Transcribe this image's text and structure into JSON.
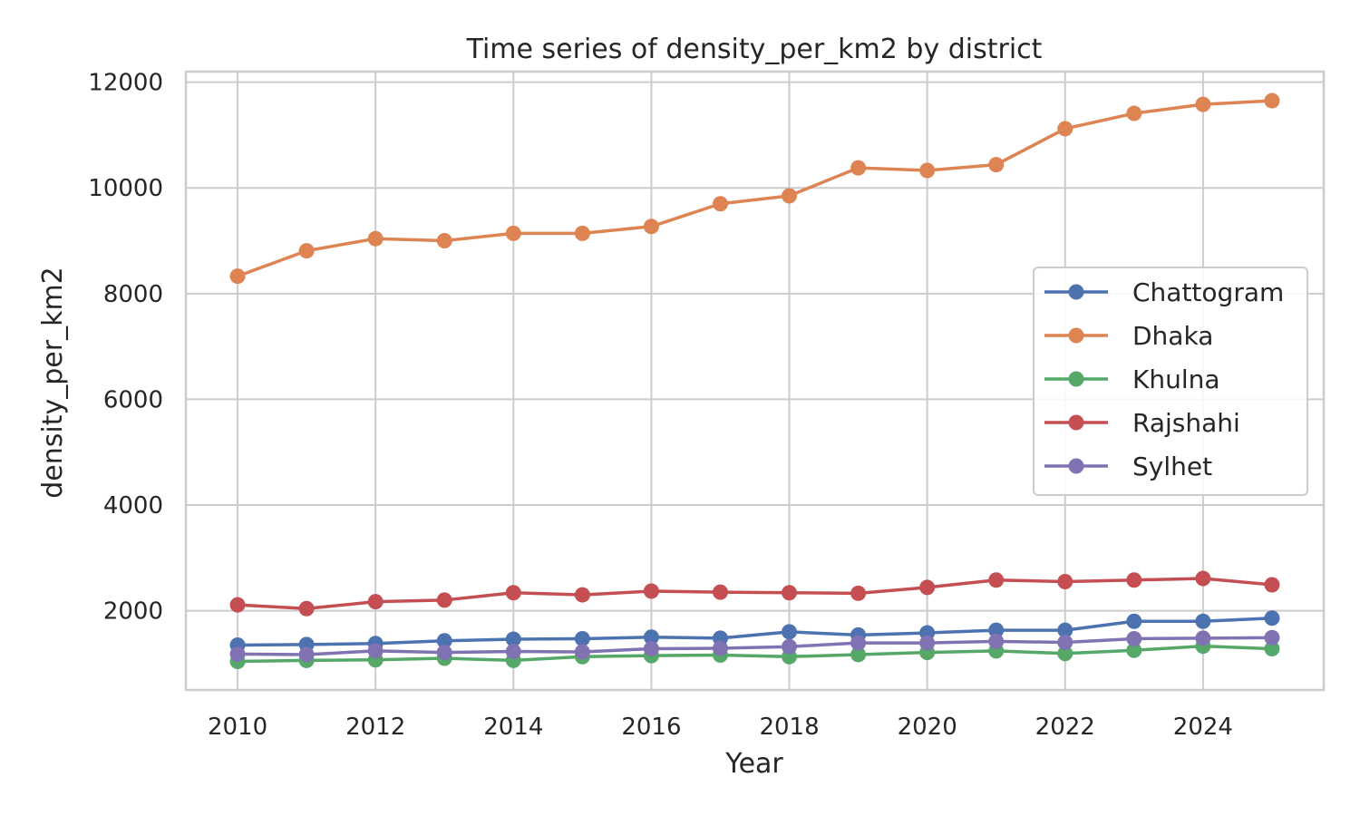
{
  "chart_data": {
    "type": "line",
    "title": "Time series of density_per_km2 by district",
    "xlabel": "Year",
    "ylabel": "density_per_km2",
    "x": [
      2010,
      2011,
      2012,
      2013,
      2014,
      2015,
      2016,
      2017,
      2018,
      2019,
      2020,
      2021,
      2022,
      2023,
      2024,
      2025
    ],
    "xlim": [
      2009.25,
      2025.75
    ],
    "ylim": [
      500,
      12200
    ],
    "xticks": [
      2010,
      2012,
      2014,
      2016,
      2018,
      2020,
      2022,
      2024
    ],
    "yticks": [
      2000,
      4000,
      6000,
      8000,
      10000,
      12000
    ],
    "grid": true,
    "legend_position": "center-right",
    "series": [
      {
        "name": "Chattogram",
        "color": "#4c72b0",
        "values": [
          1350,
          1360,
          1380,
          1430,
          1460,
          1470,
          1500,
          1480,
          1600,
          1540,
          1580,
          1630,
          1630,
          1800,
          1800,
          1860
        ]
      },
      {
        "name": "Dhaka",
        "color": "#dd8452",
        "values": [
          8330,
          8810,
          9040,
          9000,
          9140,
          9140,
          9270,
          9700,
          9850,
          10380,
          10330,
          10440,
          11120,
          11410,
          11580,
          11650
        ]
      },
      {
        "name": "Khulna",
        "color": "#55a868",
        "values": [
          1040,
          1060,
          1070,
          1100,
          1060,
          1130,
          1150,
          1160,
          1130,
          1170,
          1210,
          1240,
          1190,
          1250,
          1330,
          1280
        ]
      },
      {
        "name": "Rajshahi",
        "color": "#c44e52",
        "values": [
          2110,
          2040,
          2170,
          2200,
          2340,
          2300,
          2370,
          2350,
          2340,
          2330,
          2440,
          2580,
          2550,
          2580,
          2610,
          2490
        ]
      },
      {
        "name": "Sylhet",
        "color": "#8172b3",
        "values": [
          1180,
          1170,
          1240,
          1210,
          1230,
          1220,
          1280,
          1290,
          1320,
          1390,
          1390,
          1420,
          1400,
          1470,
          1480,
          1490
        ]
      }
    ]
  }
}
